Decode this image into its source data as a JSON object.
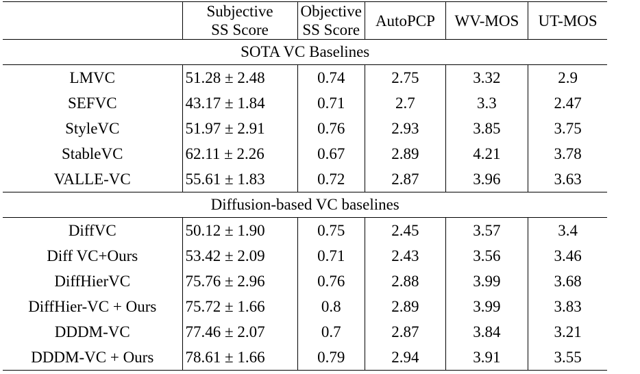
{
  "table": {
    "headers": [
      {
        "line1": "",
        "line2": ""
      },
      {
        "line1": "Subjective",
        "line2": "SS Score"
      },
      {
        "line1": "Objective",
        "line2": "SS Score"
      },
      {
        "line1": "AutoPCP",
        "line2": ""
      },
      {
        "line1": "WV-MOS",
        "line2": ""
      },
      {
        "line1": "UT-MOS",
        "line2": ""
      }
    ],
    "sections": [
      {
        "title": "SOTA VC Baselines",
        "rows": [
          {
            "model": "LMVC",
            "subjective": "51.28 ± 2.48",
            "objective": "0.74",
            "autopcp": "2.75",
            "wvmos": "3.32",
            "utmos": "2.9",
            "bold": []
          },
          {
            "model": "SEFVC",
            "subjective": "43.17 ± 1.84",
            "objective": "0.71",
            "autopcp": "2.7",
            "wvmos": "3.3",
            "utmos": "2.47",
            "bold": []
          },
          {
            "model": "StyleVC",
            "subjective": "51.97 ± 2.91",
            "objective": "0.76",
            "autopcp": "2.93",
            "wvmos": "3.85",
            "utmos": "3.75",
            "bold": []
          },
          {
            "model": "StableVC",
            "subjective": "62.11 ± 2.26",
            "objective": "0.67",
            "autopcp": "2.89",
            "wvmos": "4.21",
            "utmos": "3.78",
            "bold": []
          },
          {
            "model": "VALLE-VC",
            "subjective": "55.61 ± 1.83",
            "objective": "0.72",
            "autopcp": "2.87",
            "wvmos": "3.96",
            "utmos": "3.63",
            "bold": []
          }
        ]
      },
      {
        "title": "Diffusion-based VC baselines",
        "rows": [
          {
            "model": "DiffVC",
            "subjective": "50.12 ± 1.90",
            "objective": "0.75",
            "autopcp": "2.45",
            "wvmos": "3.57",
            "utmos": "3.4",
            "bold": [
              "objective",
              "autopcp",
              "wvmos"
            ]
          },
          {
            "model": "Diff VC+Ours",
            "subjective": "53.42 ± 2.09",
            "objective": "0.71",
            "autopcp": "2.43",
            "wvmos": "3.56",
            "utmos": "3.46",
            "bold": [
              "utmos"
            ]
          },
          {
            "model": "DiffHierVC",
            "subjective": "75.76 ± 2.96",
            "objective": "0.76",
            "autopcp": "2.88",
            "wvmos": "3.99",
            "utmos": "3.68",
            "bold": []
          },
          {
            "model": "DiffHier-VC + Ours",
            "subjective": "75.72 ± 1.66",
            "objective": "0.8",
            "autopcp": "2.89",
            "wvmos": "3.99",
            "utmos": "3.83",
            "bold": [
              "objective",
              "autopcp",
              "utmos"
            ]
          },
          {
            "model": "DDDM-VC",
            "subjective": "77.46 ± 2.07",
            "objective": "0.7",
            "autopcp": "2.87",
            "wvmos": "3.84",
            "utmos": "3.21",
            "bold": []
          },
          {
            "model": "DDDM-VC + Ours",
            "subjective": "78.61 ± 1.66",
            "objective": "0.79",
            "autopcp": "2.94",
            "wvmos": "3.91",
            "utmos": "3.55",
            "bold": [
              "objective",
              "autopcp",
              "wvmos",
              "utmos"
            ]
          }
        ]
      }
    ]
  }
}
